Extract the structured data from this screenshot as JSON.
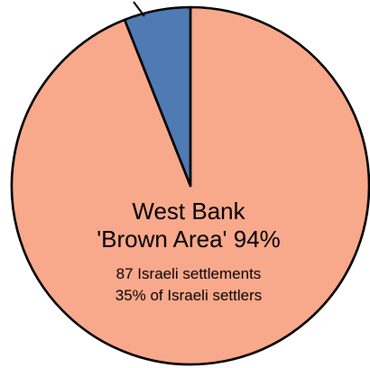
{
  "chart_data": {
    "type": "pie",
    "slices": [
      {
        "value": 94,
        "color": "#f8a98c",
        "label_lines": [
          "West Bank",
          "'Brown Area' 94%"
        ],
        "detail_lines": [
          "87 Israeli settlements",
          "35% of Israeli settlers"
        ]
      },
      {
        "value": 6,
        "color": "#4f7ab3",
        "label_lines": [],
        "detail_lines": []
      }
    ],
    "start_angle_deg": 0,
    "direction": "clockwise",
    "outline_color": "#000000"
  }
}
